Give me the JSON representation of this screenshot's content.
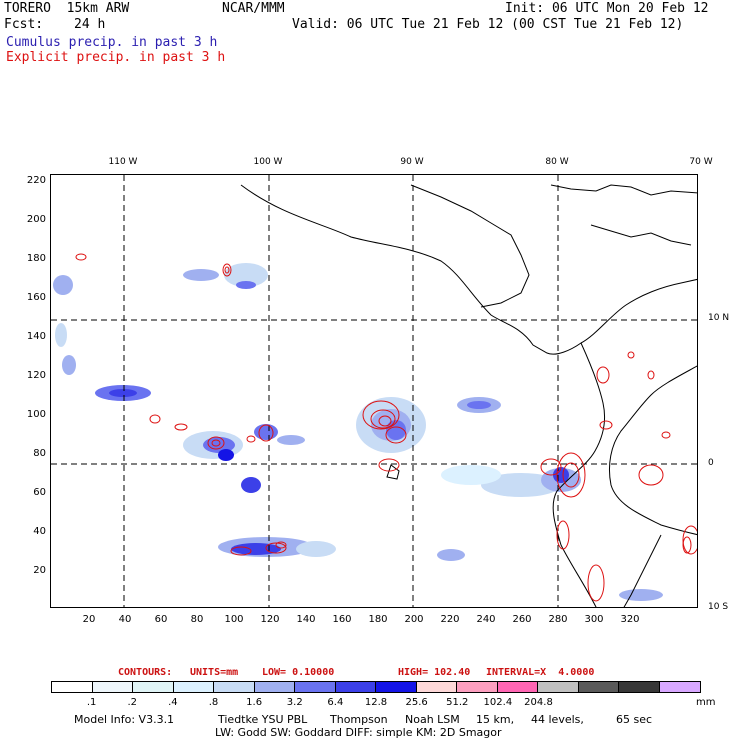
{
  "header": {
    "model_name": "TORERO  15km ARW",
    "org": "NCAR/MMM",
    "init": "Init: 06 UTC Mon 20 Feb 12",
    "fcst_label": "Fcst:",
    "fcst_hours": "24 h",
    "valid": "Valid: 06 UTC Tue 21 Feb 12 (00 CST Tue 21 Feb 12)",
    "field_blue": "Cumulus precip. in past 3 h",
    "field_red": "Explicit precip. in past 3 h"
  },
  "map": {
    "top_lon_labels": [
      "110 W",
      "100 W",
      "90 W",
      "80 W",
      "70 W"
    ],
    "right_lat_labels": [
      "10 N",
      "0",
      "10 S"
    ],
    "left_y_ticks": [
      "220",
      "200",
      "180",
      "160",
      "140",
      "120",
      "100",
      "80",
      "60",
      "40",
      "20"
    ],
    "bottom_x_ticks": [
      "20",
      "40",
      "60",
      "80",
      "100",
      "120",
      "140",
      "160",
      "180",
      "200",
      "220",
      "240",
      "260",
      "280",
      "300",
      "320"
    ],
    "colors": {
      "land_outline": "#000000",
      "gridline": "#000000",
      "contour": "#dd1111"
    }
  },
  "contours_line": {
    "prefix": "CONTOURS:",
    "units": "UNITS=mm",
    "low": "LOW= 0.10000",
    "high": "HIGH= 102.40",
    "interval": "INTERVAL=X  4.0000"
  },
  "colorbar": {
    "colors": [
      "#ffffff",
      "#eef6fb",
      "#e0f4f6",
      "#dcf1ff",
      "#c8dcf5",
      "#a0b0f0",
      "#6a73f0",
      "#3c40e8",
      "#1414e6",
      "#fdd8d8",
      "#fc9fbf",
      "#ff66b3",
      "#c0c0c0",
      "#5a5a5a",
      "#383838",
      "#d8a8ff"
    ],
    "labels": [
      ".1",
      ".2",
      ".4",
      ".8",
      "1.6",
      "3.2",
      "6.4",
      "12.8",
      "25.6",
      "51.2",
      "102.4",
      "204.8"
    ],
    "unit": "mm"
  },
  "footer": {
    "line1_a": "Model Info: V3.3.1",
    "line1_b": "Tiedtke YSU PBL",
    "line1_c": "Thompson",
    "line1_d": "Noah LSM",
    "line1_e": "15 km,",
    "line1_f": "44 levels,",
    "line1_g": "65 sec",
    "line2": "LW: Godd SW: Goddard DIFF: simple KM: 2D Smagor"
  }
}
